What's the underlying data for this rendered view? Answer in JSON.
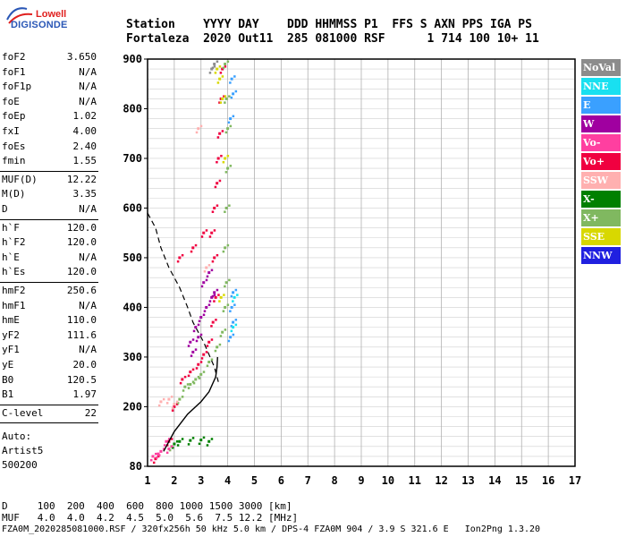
{
  "logo": {
    "line1": "Lowell",
    "line2": "DIGISONDE",
    "line1_color": "#e0201f",
    "line2_color": "#2a57b6"
  },
  "header": {
    "line1": "Station    YYYY DAY    DDD HHMMSS P1  FFS S AXN PPS IGA PS",
    "line2": "Fortaleza  2020 Out11  285 081000 RSF      1 714 100 10+ 11"
  },
  "params": [
    {
      "k": "foF2",
      "v": "3.650"
    },
    {
      "k": "foF1",
      "v": "N/A"
    },
    {
      "k": "foF1p",
      "v": "N/A"
    },
    {
      "k": "foE",
      "v": "N/A"
    },
    {
      "k": "foEp",
      "v": "1.02"
    },
    {
      "k": "fxI",
      "v": "4.00"
    },
    {
      "k": "foEs",
      "v": "2.40"
    },
    {
      "k": "fmin",
      "v": "1.55"
    },
    {
      "k": "MUF(D)",
      "v": "12.22"
    },
    {
      "k": "M(D)",
      "v": "3.35"
    },
    {
      "k": "D",
      "v": "N/A"
    },
    {
      "k": "h`F",
      "v": "120.0"
    },
    {
      "k": "h`F2",
      "v": "120.0"
    },
    {
      "k": "h`E",
      "v": "N/A"
    },
    {
      "k": "h`Es",
      "v": "120.0"
    },
    {
      "k": "hmF2",
      "v": "250.6"
    },
    {
      "k": "hmF1",
      "v": "N/A"
    },
    {
      "k": "hmE",
      "v": "110.0"
    },
    {
      "k": "yF2",
      "v": "111.6"
    },
    {
      "k": "yF1",
      "v": "N/A"
    },
    {
      "k": "yE",
      "v": "20.0"
    },
    {
      "k": "B0",
      "v": "120.5"
    },
    {
      "k": "B1",
      "v": "1.97"
    },
    {
      "k": "C-level",
      "v": "22"
    }
  ],
  "auto": {
    "line1": "Auto:",
    "line2": "Artist5",
    "line3": "500200"
  },
  "legend": [
    {
      "label": "NoVal",
      "color": "#8c8c8c"
    },
    {
      "label": "NNE",
      "color": "#19e0f0"
    },
    {
      "label": "E",
      "color": "#3aa0ff"
    },
    {
      "label": "W",
      "color": "#a000a0"
    },
    {
      "label": "Vo-",
      "color": "#ff3fa0"
    },
    {
      "label": "Vo+",
      "color": "#f00040"
    },
    {
      "label": "SSW",
      "color": "#ffb0b0"
    },
    {
      "label": "X-",
      "color": "#008000"
    },
    {
      "label": "X+",
      "color": "#80b860"
    },
    {
      "label": "SSE",
      "color": "#d8d800"
    },
    {
      "label": "NNW",
      "color": "#2020e0"
    }
  ],
  "footer": {
    "line1": "D     100  200  400  600  800 1000 1500 3000 [km]",
    "line2": "MUF   4.0  4.0  4.2  4.5  5.0  5.6  7.5 12.2 [MHz]"
  },
  "status": "FZA0M_2020285081000.RSF / 320fx256h 50 kHz 5.0 km / DPS-4 FZA0M 904 / 3.9 S 321.6 E   Ion2Png 1.3.20",
  "chart_data": {
    "type": "scatter",
    "x_ticks": [
      "1",
      "2",
      "3",
      "4",
      "5",
      "6",
      "7",
      "8",
      "9",
      "10",
      "11",
      "12",
      "13",
      "14",
      "15",
      "16",
      "17"
    ],
    "y_ticks": [
      "80",
      "200",
      "300",
      "400",
      "500",
      "600",
      "700",
      "800",
      "900"
    ],
    "xlim": [
      1,
      17
    ],
    "ylim": [
      80,
      900
    ],
    "grid": true,
    "legend_placement": "right",
    "series": [
      {
        "name": "Vo+",
        "color": "#f00040",
        "points": [
          [
            1.3,
            95
          ],
          [
            1.8,
            130
          ],
          [
            2.0,
            200
          ],
          [
            2.3,
            255
          ],
          [
            2.6,
            270
          ],
          [
            2.9,
            285
          ],
          [
            3.1,
            305
          ],
          [
            3.3,
            330
          ],
          [
            3.45,
            370
          ],
          [
            3.55,
            420
          ],
          [
            3.5,
            500
          ],
          [
            3.4,
            550
          ],
          [
            3.5,
            600
          ],
          [
            3.6,
            650
          ],
          [
            3.65,
            700
          ],
          [
            3.7,
            750
          ],
          [
            3.75,
            820
          ],
          [
            3.8,
            880
          ],
          [
            2.2,
            500
          ],
          [
            2.7,
            520
          ],
          [
            3.1,
            550
          ]
        ]
      },
      {
        "name": "X+",
        "color": "#80b860",
        "points": [
          [
            1.9,
            120
          ],
          [
            2.2,
            215
          ],
          [
            2.6,
            245
          ],
          [
            3.0,
            265
          ],
          [
            3.3,
            290
          ],
          [
            3.6,
            320
          ],
          [
            3.8,
            350
          ],
          [
            3.9,
            400
          ],
          [
            3.95,
            450
          ],
          [
            3.9,
            520
          ],
          [
            3.95,
            600
          ],
          [
            4.0,
            680
          ],
          [
            4.0,
            760
          ],
          [
            3.95,
            820
          ],
          [
            3.9,
            890
          ],
          [
            2.4,
            240
          ],
          [
            2.8,
            255
          ]
        ]
      },
      {
        "name": "W",
        "color": "#a000a0",
        "points": [
          [
            2.6,
            330
          ],
          [
            2.8,
            360
          ],
          [
            3.0,
            380
          ],
          [
            3.2,
            400
          ],
          [
            3.4,
            420
          ],
          [
            3.1,
            450
          ],
          [
            2.9,
            340
          ],
          [
            3.3,
            470
          ],
          [
            3.5,
            430
          ],
          [
            2.7,
            310
          ]
        ]
      },
      {
        "name": "E",
        "color": "#3aa0ff",
        "points": [
          [
            4.1,
            340
          ],
          [
            4.2,
            370
          ],
          [
            4.15,
            400
          ],
          [
            4.2,
            430
          ],
          [
            4.1,
            780
          ],
          [
            4.2,
            830
          ],
          [
            4.15,
            860
          ]
        ]
      },
      {
        "name": "X-",
        "color": "#008000",
        "points": [
          [
            2.2,
            130
          ],
          [
            2.6,
            132
          ],
          [
            3.0,
            133
          ],
          [
            3.3,
            130
          ],
          [
            2.0,
            125
          ]
        ]
      },
      {
        "name": "Vo-",
        "color": "#ff3fa0",
        "points": [
          [
            1.2,
            100
          ],
          [
            1.5,
            110
          ],
          [
            1.8,
            115
          ],
          [
            1.4,
            105
          ],
          [
            1.7,
            130
          ]
        ]
      },
      {
        "name": "SSW",
        "color": "#ffb0b0",
        "points": [
          [
            1.5,
            210
          ],
          [
            1.8,
            215
          ],
          [
            2.0,
            205
          ],
          [
            3.2,
            480
          ],
          [
            2.9,
            760
          ]
        ]
      },
      {
        "name": "SSE",
        "color": "#d8d800",
        "points": [
          [
            3.6,
            880
          ],
          [
            3.7,
            860
          ],
          [
            3.8,
            820
          ],
          [
            3.9,
            700
          ],
          [
            3.75,
            420
          ]
        ]
      },
      {
        "name": "NNE",
        "color": "#19e0f0",
        "points": [
          [
            4.2,
            360
          ],
          [
            4.25,
            420
          ]
        ]
      },
      {
        "name": "NoVal",
        "color": "#8c8c8c",
        "points": [
          [
            3.4,
            880
          ],
          [
            3.5,
            890
          ]
        ]
      }
    ],
    "profile_curve": [
      [
        1.6,
        110
      ],
      [
        2.0,
        150
      ],
      [
        2.5,
        185
      ],
      [
        3.0,
        210
      ],
      [
        3.3,
        230
      ],
      [
        3.55,
        260
      ],
      [
        3.6,
        280
      ],
      [
        3.62,
        300
      ]
    ],
    "dashed_curve": [
      [
        1.0,
        590
      ],
      [
        1.3,
        560
      ],
      [
        1.5,
        520
      ],
      [
        1.8,
        480
      ],
      [
        2.2,
        440
      ],
      [
        2.5,
        400
      ],
      [
        2.7,
        370
      ],
      [
        2.9,
        350
      ],
      [
        3.1,
        330
      ],
      [
        3.3,
        305
      ],
      [
        3.5,
        280
      ],
      [
        3.65,
        250
      ]
    ]
  }
}
